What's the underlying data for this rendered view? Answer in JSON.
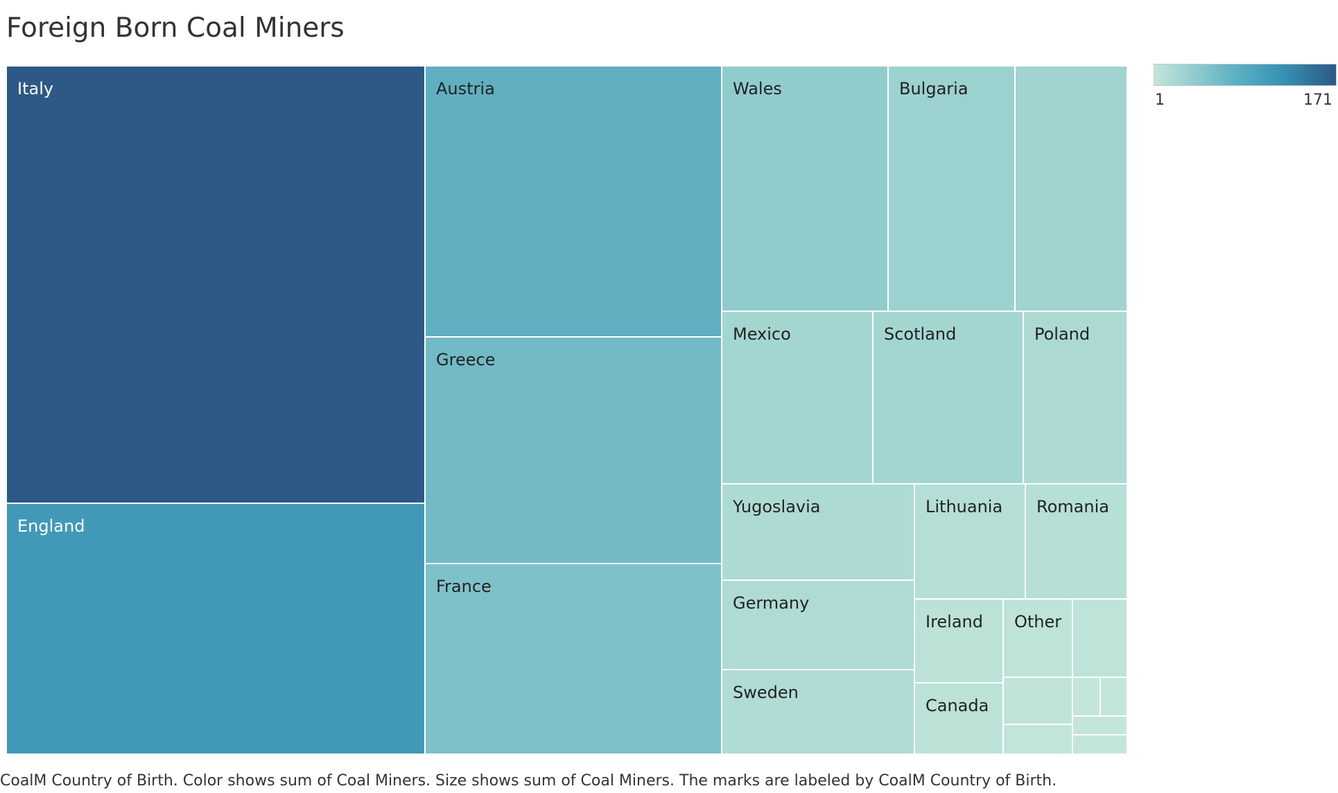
{
  "title": "Foreign Born Coal Miners",
  "caption": "CoalM Country of Birth.  Color shows sum of Coal Miners.  Size shows sum of Coal Miners.  The marks are labeled by CoalM Country of Birth.",
  "legend": {
    "min_label": "1",
    "max_label": "171"
  },
  "chart_data": {
    "type": "treemap",
    "title": "Foreign Born Coal Miners",
    "measure": "Coal Miners",
    "color_range": [
      1,
      171
    ],
    "colors": {
      "low": "#c4e6da",
      "mid": "#5cb0c4",
      "high": "#2c5985"
    },
    "items": [
      {
        "label": "Italy",
        "value": 171
      },
      {
        "label": "England",
        "value": 101
      },
      {
        "label": "Austria",
        "value": 75
      },
      {
        "label": "Greece",
        "value": 62
      },
      {
        "label": "France",
        "value": 52
      },
      {
        "label": "Wales",
        "value": 38
      },
      {
        "label": "Bulgaria",
        "value": 30
      },
      {
        "label": "",
        "value": 26
      },
      {
        "label": "Mexico",
        "value": 24
      },
      {
        "label": "Scotland",
        "value": 24
      },
      {
        "label": "Poland",
        "value": 18
      },
      {
        "label": "Yugoslavia",
        "value": 17
      },
      {
        "label": "Germany",
        "value": 16
      },
      {
        "label": "Sweden",
        "value": 15
      },
      {
        "label": "Lithuania",
        "value": 12
      },
      {
        "label": "Romania",
        "value": 11
      },
      {
        "label": "Ireland",
        "value": 7
      },
      {
        "label": "Canada",
        "value": 6
      },
      {
        "label": "Other",
        "value": 5
      },
      {
        "label": "",
        "value": 5
      },
      {
        "label": "",
        "value": 4
      },
      {
        "label": "",
        "value": 3
      },
      {
        "label": "",
        "value": 2
      },
      {
        "label": "",
        "value": 2
      },
      {
        "label": "",
        "value": 1
      },
      {
        "label": "",
        "value": 1
      }
    ]
  }
}
